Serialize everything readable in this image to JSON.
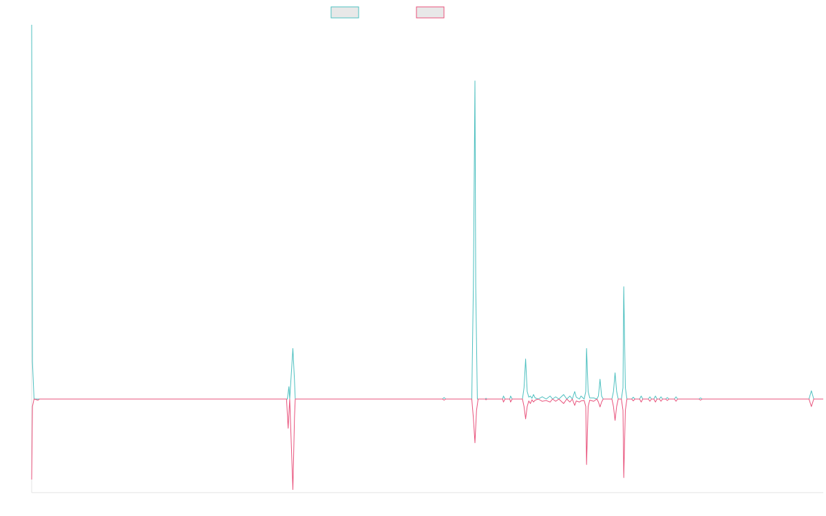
{
  "chart_data": {
    "type": "line",
    "title": "",
    "xlabel": "",
    "ylabel": "",
    "xlim": [
      0,
      1000
    ],
    "ylim": [
      -0.25,
      1.0
    ],
    "grid": false,
    "legend_position": "top-center",
    "series": [
      {
        "color": "#4bbfbf",
        "points": [
          [
            0,
            1.0
          ],
          [
            1,
            0.1
          ],
          [
            3,
            0.0
          ],
          [
            323,
            0.0
          ],
          [
            325,
            0.033
          ],
          [
            326,
            0.0
          ],
          [
            330,
            0.135
          ],
          [
            332,
            0.05
          ],
          [
            333,
            0.0
          ],
          [
            519,
            0.0
          ],
          [
            521,
            0.004
          ],
          [
            523,
            0.0
          ],
          [
            556,
            0.0
          ],
          [
            558,
            0.3
          ],
          [
            560,
            0.85
          ],
          [
            561,
            0.3
          ],
          [
            563,
            0.0
          ],
          [
            573,
            0.0
          ],
          [
            574,
            0.002
          ],
          [
            575,
            0.0
          ],
          [
            595,
            0.0
          ],
          [
            596,
            0.008
          ],
          [
            598,
            0.0
          ],
          [
            604,
            0.0
          ],
          [
            605,
            0.008
          ],
          [
            607,
            0.0
          ],
          [
            620,
            0.0
          ],
          [
            622,
            0.03
          ],
          [
            624,
            0.107
          ],
          [
            626,
            0.02
          ],
          [
            628,
            0.005
          ],
          [
            630,
            0.008
          ],
          [
            632,
            0.002
          ],
          [
            634,
            0.012
          ],
          [
            636,
            0.003
          ],
          [
            640,
            0.0
          ],
          [
            645,
            0.006
          ],
          [
            650,
            0.0
          ],
          [
            655,
            0.008
          ],
          [
            658,
            0.0
          ],
          [
            662,
            0.006
          ],
          [
            666,
            0.0
          ],
          [
            672,
            0.012
          ],
          [
            676,
            0.0
          ],
          [
            680,
            0.008
          ],
          [
            683,
            0.0
          ],
          [
            686,
            0.02
          ],
          [
            688,
            0.005
          ],
          [
            692,
            0.0
          ],
          [
            694,
            0.008
          ],
          [
            698,
            0.0
          ],
          [
            700,
            0.02
          ],
          [
            701,
            0.135
          ],
          [
            703,
            0.02
          ],
          [
            705,
            0.003
          ],
          [
            710,
            0.003
          ],
          [
            714,
            0.0
          ],
          [
            716,
            0.008
          ],
          [
            718,
            0.053
          ],
          [
            720,
            0.008
          ],
          [
            722,
            0.0
          ],
          [
            733,
            0.0
          ],
          [
            735,
            0.02
          ],
          [
            737,
            0.07
          ],
          [
            739,
            0.02
          ],
          [
            741,
            0.0
          ],
          [
            745,
            0.0
          ],
          [
            747,
            0.03
          ],
          [
            748,
            0.3
          ],
          [
            750,
            0.03
          ],
          [
            752,
            0.0
          ],
          [
            758,
            0.0
          ],
          [
            760,
            0.005
          ],
          [
            762,
            0.0
          ],
          [
            768,
            0.0
          ],
          [
            770,
            0.008
          ],
          [
            772,
            0.0
          ],
          [
            779,
            0.0
          ],
          [
            781,
            0.006
          ],
          [
            783,
            0.0
          ],
          [
            786,
            0.0
          ],
          [
            788,
            0.008
          ],
          [
            790,
            0.0
          ],
          [
            793,
            0.0
          ],
          [
            795,
            0.006
          ],
          [
            797,
            0.0
          ],
          [
            801,
            0.0
          ],
          [
            803,
            0.004
          ],
          [
            805,
            0.0
          ],
          [
            812,
            0.0
          ],
          [
            814,
            0.006
          ],
          [
            816,
            0.0
          ],
          [
            843,
            0.0
          ],
          [
            845,
            0.003
          ],
          [
            847,
            0.0
          ],
          [
            982,
            0.0
          ],
          [
            985,
            0.022
          ],
          [
            988,
            0.0
          ],
          [
            1000,
            0.0
          ]
        ]
      },
      {
        "color": "#e8507a",
        "points": [
          [
            0,
            -0.215
          ],
          [
            1,
            -0.02
          ],
          [
            3,
            0.0
          ],
          [
            8,
            -0.003
          ],
          [
            10,
            0.0
          ],
          [
            322,
            0.0
          ],
          [
            324,
            -0.078
          ],
          [
            326,
            0.0
          ],
          [
            330,
            -0.242
          ],
          [
            332,
            -0.05
          ],
          [
            333,
            0.0
          ],
          [
            519,
            0.0
          ],
          [
            521,
            -0.003
          ],
          [
            523,
            0.0
          ],
          [
            556,
            0.0
          ],
          [
            558,
            -0.05
          ],
          [
            560,
            -0.117
          ],
          [
            562,
            -0.03
          ],
          [
            564,
            0.0
          ],
          [
            573,
            0.0
          ],
          [
            574,
            -0.002
          ],
          [
            575,
            0.0
          ],
          [
            595,
            0.0
          ],
          [
            596,
            -0.008
          ],
          [
            598,
            0.0
          ],
          [
            604,
            0.0
          ],
          [
            605,
            -0.008
          ],
          [
            607,
            0.0
          ],
          [
            620,
            0.0
          ],
          [
            622,
            -0.02
          ],
          [
            624,
            -0.053
          ],
          [
            626,
            -0.02
          ],
          [
            628,
            -0.005
          ],
          [
            630,
            -0.012
          ],
          [
            632,
            -0.002
          ],
          [
            634,
            -0.008
          ],
          [
            636,
            -0.003
          ],
          [
            640,
            0.0
          ],
          [
            645,
            -0.006
          ],
          [
            650,
            -0.004
          ],
          [
            655,
            -0.008
          ],
          [
            658,
            0.0
          ],
          [
            662,
            -0.006
          ],
          [
            666,
            0.0
          ],
          [
            672,
            -0.012
          ],
          [
            676,
            0.0
          ],
          [
            680,
            -0.008
          ],
          [
            683,
            0.0
          ],
          [
            686,
            -0.017
          ],
          [
            688,
            -0.005
          ],
          [
            692,
            -0.008
          ],
          [
            694,
            -0.005
          ],
          [
            698,
            -0.004
          ],
          [
            700,
            -0.02
          ],
          [
            701,
            -0.175
          ],
          [
            703,
            -0.02
          ],
          [
            705,
            -0.003
          ],
          [
            710,
            -0.006
          ],
          [
            714,
            0.0
          ],
          [
            716,
            -0.008
          ],
          [
            718,
            -0.021
          ],
          [
            720,
            -0.008
          ],
          [
            722,
            0.0
          ],
          [
            733,
            0.0
          ],
          [
            735,
            -0.02
          ],
          [
            737,
            -0.057
          ],
          [
            739,
            -0.02
          ],
          [
            741,
            0.0
          ],
          [
            745,
            0.0
          ],
          [
            747,
            -0.03
          ],
          [
            748,
            -0.21
          ],
          [
            750,
            -0.03
          ],
          [
            752,
            0.0
          ],
          [
            758,
            0.0
          ],
          [
            760,
            -0.005
          ],
          [
            762,
            0.0
          ],
          [
            768,
            0.0
          ],
          [
            770,
            -0.008
          ],
          [
            772,
            0.0
          ],
          [
            779,
            0.0
          ],
          [
            781,
            -0.006
          ],
          [
            783,
            0.0
          ],
          [
            786,
            0.0
          ],
          [
            788,
            -0.008
          ],
          [
            790,
            0.0
          ],
          [
            793,
            0.0
          ],
          [
            795,
            -0.006
          ],
          [
            797,
            0.0
          ],
          [
            801,
            0.0
          ],
          [
            803,
            -0.004
          ],
          [
            805,
            0.0
          ],
          [
            812,
            0.0
          ],
          [
            814,
            -0.006
          ],
          [
            816,
            0.0
          ],
          [
            843,
            0.0
          ],
          [
            845,
            -0.003
          ],
          [
            847,
            0.0
          ],
          [
            982,
            0.0
          ],
          [
            985,
            -0.02
          ],
          [
            988,
            0.0
          ],
          [
            1000,
            0.0
          ]
        ]
      }
    ]
  }
}
